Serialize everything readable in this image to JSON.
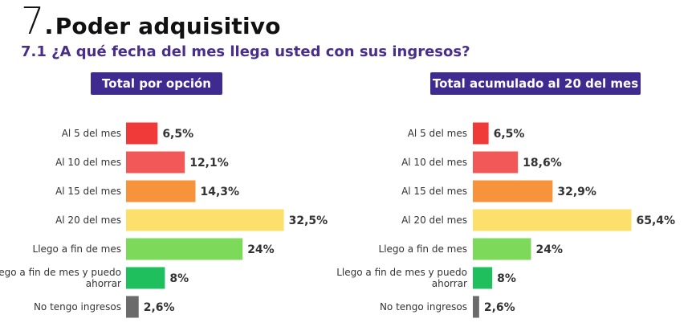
{
  "title": {
    "number": "7",
    "dot": ".",
    "text": "Poder adquisitivo"
  },
  "subtitle": "7.1 ¿A qué fecha del mes llega usted con sus ingresos?",
  "chart_data": [
    {
      "type": "bar",
      "orientation": "horizontal",
      "title": "Total por opción",
      "categories": [
        "Al 5 del mes",
        "Al 10 del mes",
        "Al 15 del mes",
        "Al 20 del mes",
        "Llego a fin de mes",
        "Llego a fin de mes y puedo ahorrar",
        "No tengo ingresos"
      ],
      "values": [
        6.5,
        12.1,
        14.3,
        32.5,
        24,
        8,
        2.6
      ],
      "value_labels": [
        "6,5%",
        "12,1%",
        "14,3%",
        "32,5%",
        "24%",
        "8%",
        "2,6%"
      ],
      "colors": [
        "#f03a3a",
        "#f25858",
        "#f7933a",
        "#fde06b",
        "#7dd95a",
        "#1fbf5e",
        "#6b6b6b"
      ],
      "grid": false,
      "legend": "none"
    },
    {
      "type": "bar",
      "orientation": "horizontal",
      "title": "Total acumulado al 20 del mes",
      "categories": [
        "Al 5 del mes",
        "Al 10 del mes",
        "Al 15 del mes",
        "Al 20 del mes",
        "Llego a fin de mes",
        "Llego a fin de mes y puedo ahorrar",
        "No tengo ingresos"
      ],
      "values": [
        6.5,
        18.6,
        32.9,
        65.4,
        24,
        8,
        2.6
      ],
      "value_labels": [
        "6,5%",
        "18,6%",
        "32,9%",
        "65,4%",
        "24%",
        "8%",
        "2,6%"
      ],
      "colors": [
        "#f03a3a",
        "#f25858",
        "#f7933a",
        "#fde06b",
        "#7dd95a",
        "#1fbf5e",
        "#6b6b6b"
      ],
      "grid": false,
      "legend": "none"
    }
  ]
}
